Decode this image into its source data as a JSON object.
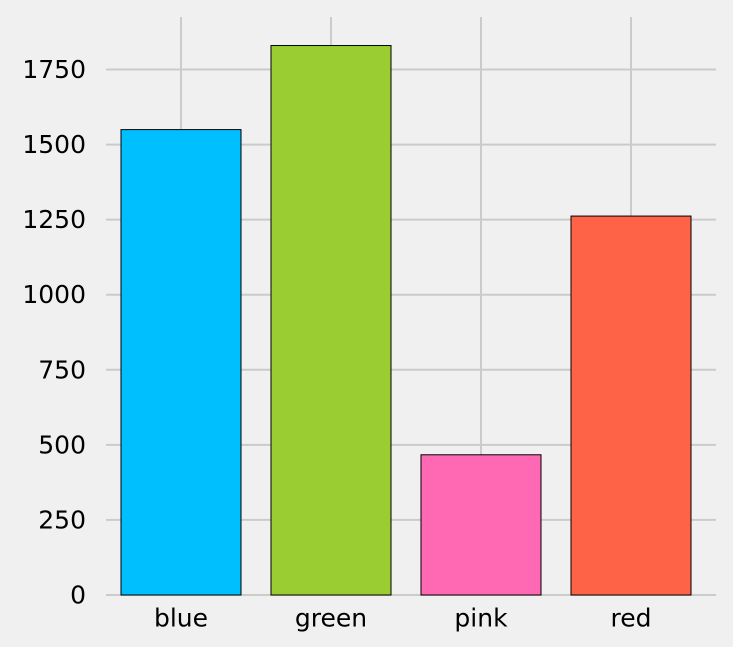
{
  "chart_data": {
    "type": "bar",
    "categories": [
      "blue",
      "green",
      "pink",
      "red"
    ],
    "values": [
      1550,
      1830,
      467,
      1262
    ],
    "colors": [
      "#00bfff",
      "#9acd32",
      "#ff69b4",
      "#ff6347"
    ],
    "title": "",
    "xlabel": "",
    "ylabel": "",
    "ylim": [
      0,
      1925
    ],
    "yticks": [
      0,
      250,
      500,
      750,
      1000,
      1250,
      1500,
      1750
    ],
    "grid": true,
    "background": "#f0f0f0",
    "grid_color": "#cbcbcb"
  }
}
